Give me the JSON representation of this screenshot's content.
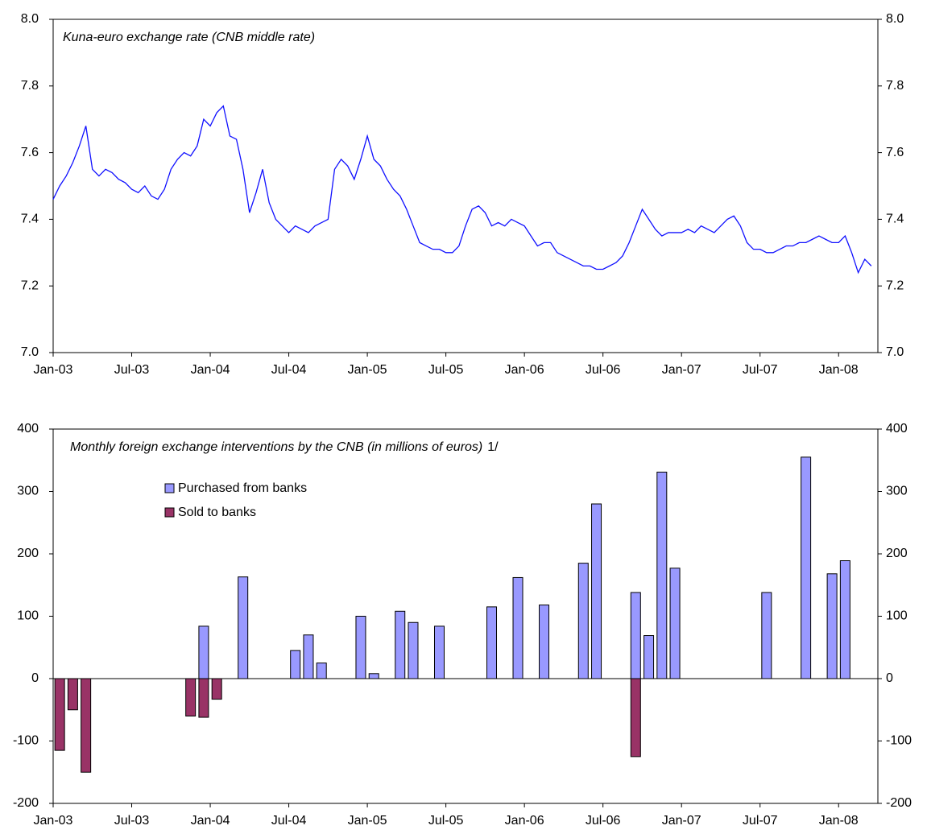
{
  "chart_data": [
    {
      "type": "line",
      "title": "Kuna-euro exchange rate (CNB middle rate)",
      "categories": [
        "Jan-03",
        null,
        null,
        null,
        null,
        null,
        null,
        null,
        null,
        null,
        null,
        null,
        "Jul-03",
        null,
        null,
        null,
        null,
        null,
        null,
        null,
        null,
        null,
        null,
        null,
        "Jan-04",
        null,
        null,
        null,
        null,
        null,
        null,
        null,
        null,
        null,
        null,
        null,
        "Jul-04",
        null,
        null,
        null,
        null,
        null,
        null,
        null,
        null,
        null,
        null,
        null,
        "Jan-05",
        null,
        null,
        null,
        null,
        null,
        null,
        null,
        null,
        null,
        null,
        null,
        "Jul-05",
        null,
        null,
        null,
        null,
        null,
        null,
        null,
        null,
        null,
        null,
        null,
        "Jan-06",
        null,
        null,
        null,
        null,
        null,
        null,
        null,
        null,
        null,
        null,
        null,
        "Jul-06",
        null,
        null,
        null,
        null,
        null,
        null,
        null,
        null,
        null,
        null,
        null,
        "Jan-07",
        null,
        null,
        null,
        null,
        null,
        null,
        null,
        null,
        null,
        null,
        null,
        "Jul-07",
        null,
        null,
        null,
        null,
        null,
        null,
        null,
        null,
        null,
        null,
        null,
        "Jan-08",
        null,
        null,
        null,
        null,
        null
      ],
      "series": [
        {
          "color": "#1010ff",
          "values": [
            7.46,
            7.5,
            7.53,
            7.57,
            7.62,
            7.68,
            7.55,
            7.53,
            7.55,
            7.54,
            7.52,
            7.51,
            7.49,
            7.48,
            7.5,
            7.47,
            7.46,
            7.49,
            7.55,
            7.58,
            7.6,
            7.59,
            7.62,
            7.7,
            7.68,
            7.72,
            7.74,
            7.65,
            7.64,
            7.55,
            7.42,
            7.48,
            7.55,
            7.45,
            7.4,
            7.38,
            7.36,
            7.38,
            7.37,
            7.36,
            7.38,
            7.39,
            7.4,
            7.55,
            7.58,
            7.56,
            7.52,
            7.58,
            7.65,
            7.58,
            7.56,
            7.52,
            7.49,
            7.47,
            7.43,
            7.38,
            7.33,
            7.32,
            7.31,
            7.31,
            7.3,
            7.3,
            7.32,
            7.38,
            7.43,
            7.44,
            7.42,
            7.38,
            7.39,
            7.38,
            7.4,
            7.39,
            7.38,
            7.35,
            7.32,
            7.33,
            7.33,
            7.3,
            7.29,
            7.28,
            7.27,
            7.26,
            7.26,
            7.25,
            7.25,
            7.26,
            7.27,
            7.29,
            7.33,
            7.38,
            7.43,
            7.4,
            7.37,
            7.35,
            7.36,
            7.36,
            7.36,
            7.37,
            7.36,
            7.38,
            7.37,
            7.36,
            7.38,
            7.4,
            7.41,
            7.38,
            7.33,
            7.31,
            7.31,
            7.3,
            7.3,
            7.31,
            7.32,
            7.32,
            7.33,
            7.33,
            7.34,
            7.35,
            7.34,
            7.33,
            7.33,
            7.35,
            7.3,
            7.24,
            7.28,
            7.26
          ]
        }
      ],
      "ylim": [
        7.0,
        8.0
      ],
      "yticks": [
        {
          "value": 7,
          "label": "7.0"
        },
        7.2,
        7.4,
        7.6,
        7.8,
        {
          "value": 8,
          "label": "8.0"
        }
      ],
      "y2lim": [
        7.0,
        8.0
      ],
      "y2ticks": [
        {
          "value": 7,
          "label": "7.0"
        },
        7.2,
        7.4,
        7.6,
        7.8,
        {
          "value": 8,
          "label": "8.0"
        }
      ]
    },
    {
      "type": "bar",
      "title": "Monthly foreign exchange interventions by the CNB (in millions of euros)",
      "footnote": "1/",
      "categories": [
        "Jan-03",
        null,
        null,
        null,
        null,
        null,
        "Jul-03",
        null,
        null,
        null,
        null,
        null,
        "Jan-04",
        null,
        null,
        null,
        null,
        null,
        "Jul-04",
        null,
        null,
        null,
        null,
        null,
        "Jan-05",
        null,
        null,
        null,
        null,
        null,
        "Jul-05",
        null,
        null,
        null,
        null,
        null,
        "Jan-06",
        null,
        null,
        null,
        null,
        null,
        "Jul-06",
        null,
        null,
        null,
        null,
        null,
        "Jan-07",
        null,
        null,
        null,
        null,
        null,
        "Jul-07",
        null,
        null,
        null,
        null,
        null,
        "Jan-08",
        null,
        null
      ],
      "series": [
        {
          "name": "Purchased from banks",
          "color": "#9999ff",
          "values": [
            null,
            null,
            null,
            null,
            null,
            null,
            null,
            null,
            null,
            null,
            null,
            84,
            null,
            null,
            163,
            null,
            null,
            null,
            45,
            70,
            25,
            null,
            null,
            100,
            8,
            null,
            108,
            90,
            null,
            84,
            null,
            null,
            null,
            115,
            null,
            162,
            null,
            118,
            null,
            null,
            185,
            280,
            null,
            null,
            138,
            69,
            331,
            177,
            null,
            null,
            null,
            null,
            null,
            null,
            138,
            null,
            null,
            355,
            null,
            168,
            189,
            null,
            null
          ]
        },
        {
          "name": "Sold to banks",
          "color": "#993366",
          "values": [
            -115,
            -50,
            -150,
            null,
            null,
            null,
            null,
            null,
            null,
            null,
            -60,
            -62,
            -33,
            null,
            null,
            null,
            null,
            null,
            null,
            null,
            null,
            null,
            null,
            null,
            null,
            null,
            null,
            null,
            null,
            null,
            null,
            null,
            null,
            null,
            null,
            null,
            null,
            null,
            null,
            null,
            null,
            null,
            null,
            null,
            -125,
            null,
            null,
            null,
            null,
            null,
            null,
            null,
            null,
            null,
            null,
            null,
            null,
            null,
            null,
            null,
            null,
            null,
            null
          ]
        }
      ],
      "ylim": [
        -200,
        400
      ],
      "yticks": [
        -200,
        -100,
        0,
        100,
        200,
        300,
        400
      ],
      "y2lim": [
        -200,
        400
      ],
      "y2ticks": [
        -200,
        -100,
        0,
        100,
        200,
        300,
        400
      ],
      "legend_position": "upper left"
    }
  ]
}
